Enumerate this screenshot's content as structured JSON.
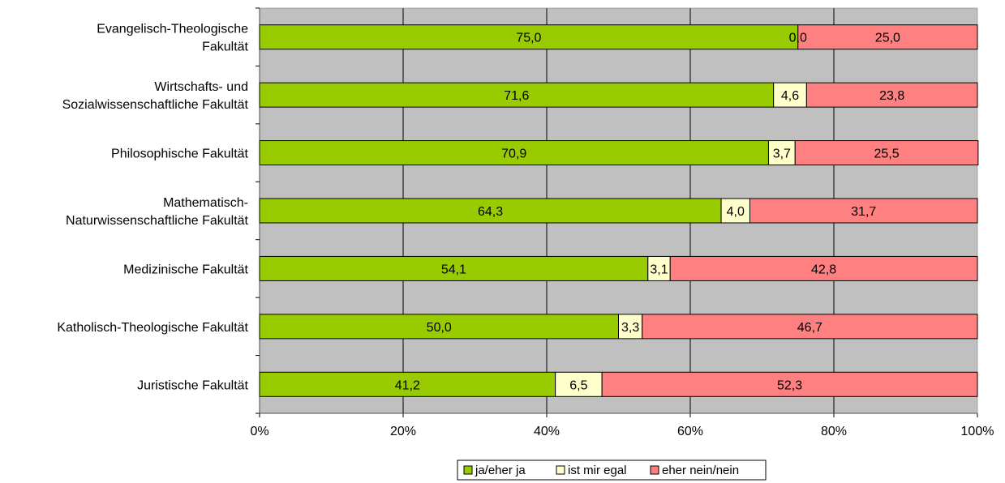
{
  "chart_data": {
    "type": "bar",
    "orientation": "horizontal",
    "stacked": true,
    "stack_mode": "percent",
    "categories": [
      "Evangelisch-Theologische Fakultät",
      "Wirtschafts- und Sozialwissenschaftliche Fakultät",
      "Philosophische Fakultät",
      "Mathematisch-Naturwissenschaftliche Fakultät",
      "Medizinische Fakultät",
      "Katholisch-Theologische Fakultät",
      "Juristische Fakultät"
    ],
    "category_label_lines": [
      [
        "Evangelisch-Theologische",
        "Fakultät"
      ],
      [
        "Wirtschafts- und",
        "Sozialwissenschaftliche Fakultät"
      ],
      [
        "Philosophische Fakultät"
      ],
      [
        "Mathematisch-",
        "Naturwissenschaftliche Fakultät"
      ],
      [
        "Medizinische Fakultät"
      ],
      [
        "Katholisch-Theologische Fakultät"
      ],
      [
        "Juristische Fakultät"
      ]
    ],
    "series": [
      {
        "name": "ja/eher ja",
        "color": "#99cc00",
        "values": [
          75.0,
          71.6,
          70.9,
          64.3,
          54.1,
          50.0,
          41.2
        ],
        "labels": [
          "75,0",
          "71,6",
          "70,9",
          "64,3",
          "54,1",
          "50,0",
          "41,2"
        ]
      },
      {
        "name": "ist mir egal",
        "color": "#ffffcc",
        "values": [
          0.0,
          4.6,
          3.7,
          4.0,
          3.1,
          3.3,
          6.5
        ],
        "labels": [
          "0,0",
          "4,6",
          "3,7",
          "4,0",
          "3,1",
          "3,3",
          "6,5"
        ]
      },
      {
        "name": "eher nein/nein",
        "color": "#ff8080",
        "values": [
          25.0,
          23.8,
          25.5,
          31.7,
          42.8,
          46.7,
          52.3
        ],
        "labels": [
          "25,0",
          "23,8",
          "25,5",
          "31,7",
          "42,8",
          "46,7",
          "52,3"
        ]
      }
    ],
    "x_ticks": [
      "0%",
      "20%",
      "40%",
      "60%",
      "80%",
      "100%"
    ],
    "xlim": [
      0,
      100
    ],
    "plot_background": "#c0c0c0",
    "grid": true,
    "legend_position": "bottom-center"
  }
}
